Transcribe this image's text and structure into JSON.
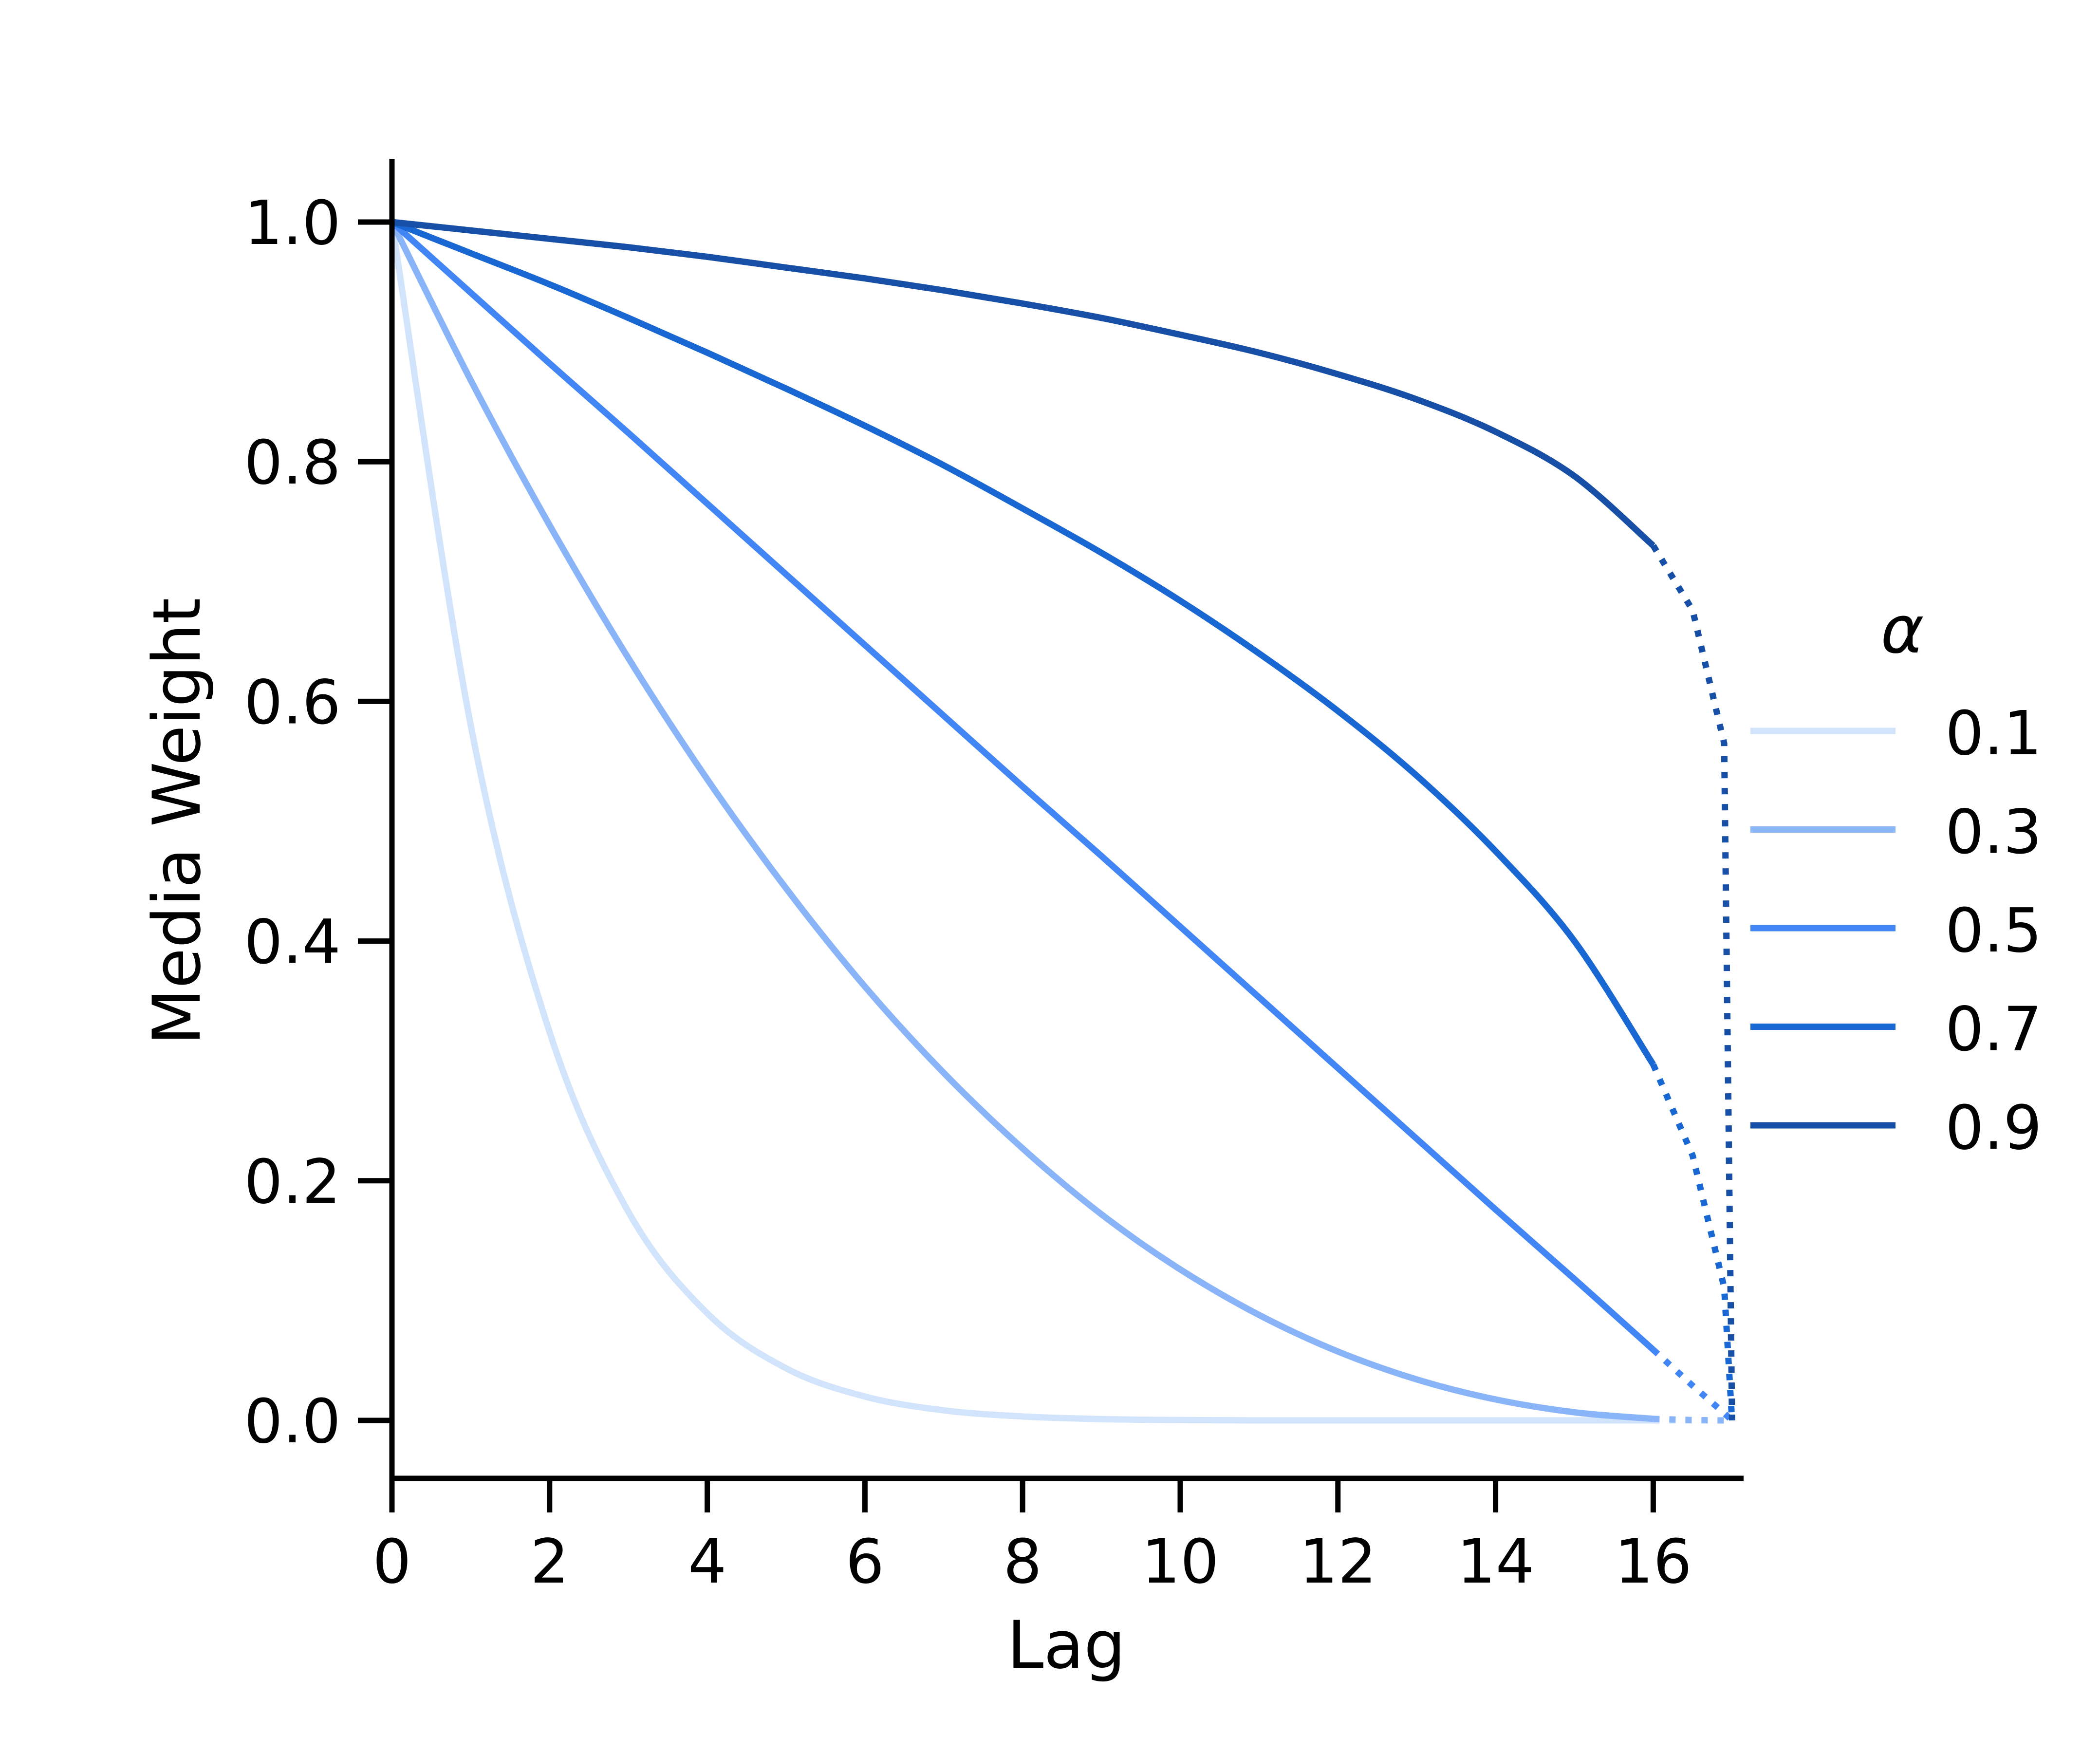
{
  "chart_data": {
    "type": "line",
    "title": "",
    "xlabel": "Lag",
    "ylabel": "Media Weight",
    "xlim": [
      0,
      17.2
    ],
    "ylim": [
      -0.05,
      1.05
    ],
    "xticks": [
      0,
      2,
      4,
      6,
      8,
      10,
      12,
      14,
      16
    ],
    "yticks": [
      0.0,
      0.2,
      0.4,
      0.6,
      0.8,
      1.0
    ],
    "ytick_labels": [
      "0.0",
      "0.2",
      "0.4",
      "0.6",
      "0.8",
      "1.0"
    ],
    "grid": false,
    "legend": {
      "title": "α",
      "placement": "right"
    },
    "solid_until_lag": 16,
    "dotted_after_lag": 16,
    "x": [
      0,
      1,
      2,
      3,
      4,
      5,
      6,
      7,
      8,
      9,
      10,
      11,
      12,
      13,
      14,
      15,
      16,
      16.5,
      16.9,
      17
    ],
    "series": [
      {
        "name": "0.1",
        "color": "#d2e3fc",
        "values": [
          1,
          0.58,
          0.324,
          0.174,
          0.0894,
          0.0435,
          0.0199,
          0.0084,
          0.0033,
          0.0011,
          0.0003,
          0,
          0,
          0,
          0,
          0,
          0,
          0,
          0,
          0
        ]
      },
      {
        "name": "0.3",
        "color": "#8ab4f8",
        "values": [
          1,
          0.868,
          0.747,
          0.636,
          0.535,
          0.444,
          0.362,
          0.29,
          0.227,
          0.172,
          0.126,
          0.088,
          0.0575,
          0.0342,
          0.0175,
          0.0068,
          0.0013,
          0.0003,
          0,
          0
        ]
      },
      {
        "name": "0.5",
        "color": "#4285f4",
        "values": [
          1,
          0.941,
          0.882,
          0.824,
          0.765,
          0.706,
          0.647,
          0.588,
          0.529,
          0.471,
          0.412,
          0.353,
          0.294,
          0.235,
          0.176,
          0.118,
          0.059,
          0.029,
          0.006,
          0
        ]
      },
      {
        "name": "0.7",
        "color": "#1967d2",
        "values": [
          1,
          0.974,
          0.948,
          0.92,
          0.891,
          0.861,
          0.83,
          0.797,
          0.761,
          0.724,
          0.684,
          0.64,
          0.592,
          0.538,
          0.475,
          0.4,
          0.297,
          0.221,
          0.111,
          0
        ]
      },
      {
        "name": "0.9",
        "color": "#174ea6",
        "values": [
          1,
          0.993,
          0.986,
          0.979,
          0.971,
          0.962,
          0.953,
          0.943,
          0.932,
          0.92,
          0.906,
          0.891,
          0.873,
          0.852,
          0.825,
          0.788,
          0.73,
          0.676,
          0.565,
          0
        ]
      }
    ]
  }
}
